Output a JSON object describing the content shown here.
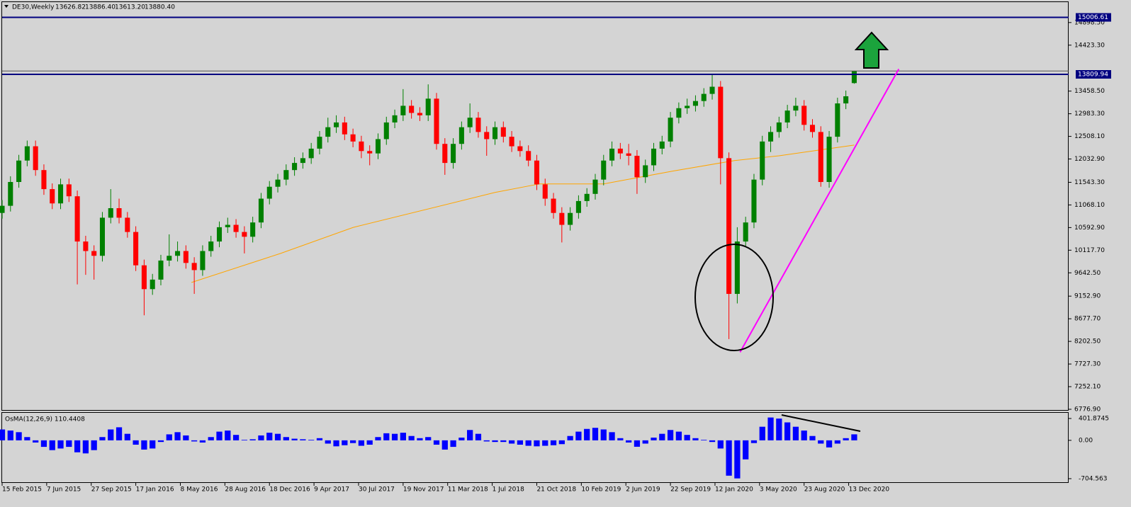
{
  "chart_data": {
    "type": "candlestick",
    "title": "DE30,Weekly",
    "quote": [
      "13626.82",
      "13886.40",
      "13613.20",
      "13880.40"
    ],
    "up_color": "#008000",
    "down_color": "#ff0000",
    "x": [
      0,
      3,
      6,
      9,
      12,
      15,
      18,
      21,
      24,
      27,
      30,
      33,
      36,
      39,
      42,
      45,
      48,
      51,
      54,
      57,
      60,
      63,
      66,
      69,
      72,
      75,
      78,
      81,
      84,
      87,
      90,
      93,
      96,
      99,
      102,
      105,
      108,
      111,
      114,
      117,
      120,
      123,
      126,
      129,
      132,
      135,
      138,
      141,
      144,
      147,
      150,
      153,
      156,
      159,
      162,
      165,
      168,
      171,
      174,
      177,
      180,
      183,
      186,
      189,
      192,
      195,
      198,
      201,
      204,
      207,
      210,
      213,
      216,
      219,
      222,
      225,
      228,
      231,
      234,
      237,
      240,
      243,
      246,
      249,
      252,
      255,
      258,
      261,
      264,
      267,
      270,
      273,
      276,
      279,
      282,
      285,
      288,
      291,
      294,
      297,
      300,
      303,
      306
    ],
    "open": [
      10900,
      11050,
      11550,
      12000,
      12300,
      11800,
      11400,
      11100,
      11500,
      11250,
      10300,
      10100,
      10000,
      10800,
      11000,
      10800,
      10500,
      9800,
      9300,
      9500,
      9900,
      10000,
      10100,
      9850,
      9700,
      10100,
      10300,
      10600,
      10650,
      10500,
      10400,
      10700,
      11200,
      11450,
      11600,
      11800,
      11950,
      12050,
      12250,
      12500,
      12700,
      12800,
      12550,
      12400,
      12200,
      12150,
      12450,
      12800,
      12950,
      13150,
      13000,
      12950,
      13300,
      12350,
      11950,
      12350,
      12700,
      12900,
      12600,
      12450,
      12700,
      12500,
      12300,
      12200,
      12000,
      11500,
      11200,
      10900,
      10650,
      10900,
      11150,
      11300,
      11600,
      12000,
      12250,
      12150,
      12100,
      11650,
      11900,
      12250,
      12400,
      12900,
      13100,
      13150,
      13250,
      13400,
      13550,
      12050,
      9200,
      10300,
      10700,
      11600,
      12400,
      12600,
      12800,
      13050,
      13150,
      12750,
      12600,
      11550,
      12500,
      13200,
      13626.82
    ],
    "high": [
      11170,
      11670,
      12120,
      12420,
      12420,
      11920,
      11520,
      11620,
      11620,
      11370,
      10420,
      10220,
      10920,
      11400,
      11200,
      10920,
      10620,
      9920,
      9620,
      10020,
      10450,
      10300,
      10220,
      9970,
      10220,
      10420,
      10720,
      10800,
      10770,
      10620,
      10820,
      11320,
      11570,
      11720,
      11920,
      12070,
      12170,
      12370,
      12620,
      12900,
      12950,
      12920,
      12670,
      12520,
      12320,
      12570,
      12920,
      13070,
      13500,
      13270,
      13120,
      13600,
      13420,
      12470,
      12470,
      12820,
      13200,
      13020,
      12720,
      12820,
      12820,
      12620,
      12420,
      12320,
      12120,
      11620,
      11320,
      11020,
      11020,
      11270,
      11420,
      11720,
      12120,
      12400,
      12370,
      12350,
      12220,
      12020,
      12370,
      12520,
      13020,
      13220,
      13300,
      13370,
      13520,
      13800,
      13670,
      12170,
      10600,
      10820,
      11720,
      12520,
      12720,
      12920,
      13170,
      13320,
      13270,
      12870,
      12720,
      12620,
      13320,
      13470,
      13886.4
    ],
    "low": [
      10780,
      10930,
      11430,
      11880,
      11680,
      11280,
      10980,
      10980,
      11130,
      9400,
      9600,
      9500,
      9880,
      10680,
      10680,
      10380,
      9680,
      8750,
      9180,
      9380,
      9780,
      9880,
      9730,
      9200,
      9580,
      9980,
      10180,
      10480,
      10380,
      10050,
      10280,
      10580,
      11080,
      11330,
      11480,
      11680,
      11830,
      11930,
      12130,
      12380,
      12580,
      12430,
      12280,
      12050,
      11900,
      12030,
      12330,
      12680,
      12830,
      12880,
      12830,
      12830,
      12230,
      11700,
      11830,
      12230,
      12580,
      12480,
      12100,
      12330,
      12380,
      12180,
      12080,
      11880,
      11380,
      11050,
      10780,
      10280,
      10530,
      10780,
      11030,
      11180,
      11480,
      11880,
      12030,
      11900,
      11300,
      11530,
      11780,
      12130,
      12280,
      12780,
      12980,
      13030,
      13130,
      13280,
      11500,
      8250,
      9000,
      10180,
      10580,
      11480,
      12180,
      12480,
      12680,
      12930,
      12630,
      12480,
      11450,
      11430,
      12380,
      13080,
      13613.2
    ],
    "close": [
      11050,
      11550,
      12000,
      12300,
      11800,
      11400,
      11100,
      11500,
      11250,
      10300,
      10100,
      10000,
      10800,
      11000,
      10800,
      10500,
      9800,
      9300,
      9500,
      9900,
      10000,
      10100,
      9850,
      9700,
      10100,
      10300,
      10600,
      10650,
      10500,
      10400,
      10700,
      11200,
      11450,
      11600,
      11800,
      11950,
      12050,
      12250,
      12500,
      12700,
      12800,
      12550,
      12400,
      12200,
      12150,
      12450,
      12800,
      12950,
      13150,
      13000,
      12950,
      13300,
      12350,
      11950,
      12350,
      12700,
      12900,
      12600,
      12450,
      12700,
      12500,
      12300,
      12200,
      12000,
      11500,
      11200,
      10900,
      10650,
      10900,
      11150,
      11300,
      11600,
      12000,
      12250,
      12150,
      12100,
      11650,
      11900,
      12250,
      12400,
      12900,
      13100,
      13150,
      13250,
      13400,
      13550,
      12050,
      9200,
      10300,
      10700,
      11600,
      12400,
      12600,
      12800,
      13050,
      13150,
      12750,
      12600,
      11550,
      12500,
      13200,
      13350,
      13880.4
    ],
    "xlim": [
      0,
      383
    ],
    "xticks": [
      {
        "value": 0,
        "label": "15 Feb 2015"
      },
      {
        "value": 16,
        "label": "7 Jun 2015"
      },
      {
        "value": 32,
        "label": "27 Sep 2015"
      },
      {
        "value": 48,
        "label": "17 Jan 2016"
      },
      {
        "value": 64,
        "label": "8 May 2016"
      },
      {
        "value": 80,
        "label": "28 Aug 2016"
      },
      {
        "value": 96,
        "label": "18 Dec 2016"
      },
      {
        "value": 112,
        "label": "9 Apr 2017"
      },
      {
        "value": 128,
        "label": "30 Jul 2017"
      },
      {
        "value": 144,
        "label": "19 Nov 2017"
      },
      {
        "value": 160,
        "label": "11 Mar 2018"
      },
      {
        "value": 176,
        "label": "1 Jul 2018"
      },
      {
        "value": 192,
        "label": "21 Oct 2018"
      },
      {
        "value": 208,
        "label": "10 Feb 2019"
      },
      {
        "value": 224,
        "label": "2 Jun 2019"
      },
      {
        "value": 240,
        "label": "22 Sep 2019"
      },
      {
        "value": 256,
        "label": "12 Jan 2020"
      },
      {
        "value": 272,
        "label": "3 May 2020"
      },
      {
        "value": 288,
        "label": "23 Aug 2020"
      },
      {
        "value": 304,
        "label": "13 Dec 2020"
      }
    ],
    "ylim": [
      6747,
      15327
    ],
    "yticks": [
      {
        "value": 14898.5,
        "label": "14898.50"
      },
      {
        "value": 14423.3,
        "label": "14423.30"
      },
      {
        "value": 13458.5,
        "label": "13458.50"
      },
      {
        "value": 12983.3,
        "label": "12983.30"
      },
      {
        "value": 12508.1,
        "label": "12508.10"
      },
      {
        "value": 12032.9,
        "label": "12032.90"
      },
      {
        "value": 11543.3,
        "label": "11543.30"
      },
      {
        "value": 11068.1,
        "label": "11068.10"
      },
      {
        "value": 10592.9,
        "label": "10592.90"
      },
      {
        "value": 10117.7,
        "label": "10117.70"
      },
      {
        "value": 9642.5,
        "label": "9642.50"
      },
      {
        "value": 9152.9,
        "label": "9152.90"
      },
      {
        "value": 8677.7,
        "label": "8677.70"
      },
      {
        "value": 8202.5,
        "label": "8202.50"
      },
      {
        "value": 7727.3,
        "label": "7727.30"
      },
      {
        "value": 7252.1,
        "label": "7252.10"
      },
      {
        "value": 6776.9,
        "label": "6776.90"
      }
    ],
    "levels": [
      15006.61,
      13809.94
    ],
    "levels_color": "#000080",
    "ma": {
      "color": "#ffa500",
      "x": [
        68,
        100,
        126,
        177,
        193,
        216,
        241,
        263,
        279,
        306
      ],
      "values": [
        9440,
        10050,
        10595,
        11330,
        11510,
        11510,
        11780,
        12000,
        12100,
        12325
      ]
    },
    "trendline": {
      "color": "#ff00ff",
      "x": [
        265,
        322
      ],
      "values": [
        7976,
        13922
      ]
    },
    "indicator": {
      "type": "bar",
      "title": "OsMA(12,26,9) 110.4408",
      "color": "#0000ff",
      "values": [
        200,
        180,
        150,
        60,
        -40,
        -120,
        -180,
        -150,
        -120,
        -220,
        -240,
        -180,
        60,
        200,
        240,
        120,
        -80,
        -170,
        -150,
        -30,
        110,
        150,
        90,
        -20,
        -40,
        60,
        160,
        180,
        100,
        10,
        20,
        90,
        140,
        120,
        60,
        30,
        20,
        10,
        40,
        -60,
        -110,
        -90,
        -50,
        -100,
        -80,
        60,
        130,
        120,
        140,
        80,
        40,
        60,
        -80,
        -170,
        -120,
        50,
        190,
        120,
        -20,
        -30,
        -30,
        -60,
        -80,
        -100,
        -110,
        -100,
        -90,
        -70,
        80,
        160,
        210,
        230,
        200,
        150,
        40,
        -40,
        -118,
        -60,
        50,
        120,
        190,
        160,
        100,
        40,
        10,
        -30,
        -150,
        -650,
        -700,
        -350,
        -50,
        250,
        420,
        400,
        330,
        250,
        180,
        80,
        -60,
        -130,
        -60,
        40,
        110.4408
      ],
      "ylim": [
        -783,
        506
      ],
      "yticks": [
        401.8745,
        {
          "value": 0,
          "label": "0.00"
        },
        -704.563
      ]
    }
  }
}
